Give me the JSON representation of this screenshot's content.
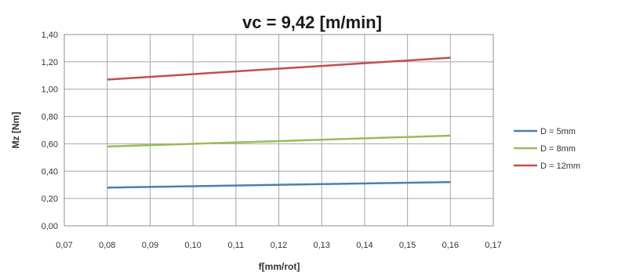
{
  "chart_data": {
    "type": "line",
    "title": "vc = 9,42 [m/min]",
    "xlabel": "f[mm/rot]",
    "ylabel": "Mz [Nm]",
    "xlim": [
      0.07,
      0.17
    ],
    "ylim": [
      0.0,
      1.4
    ],
    "x_ticks": [
      "0,07",
      "0,08",
      "0,09",
      "0,10",
      "0,11",
      "0,12",
      "0,13",
      "0,14",
      "0,15",
      "0,16",
      "0,17"
    ],
    "y_ticks": [
      "0,00",
      "0,20",
      "0,40",
      "0,60",
      "0,80",
      "1,00",
      "1,20",
      "1,40"
    ],
    "grid": true,
    "legend_position": "right",
    "series": [
      {
        "name": "D = 5mm",
        "color": "#4a7ebb",
        "x": [
          0.08,
          0.16
        ],
        "y": [
          0.28,
          0.32
        ]
      },
      {
        "name": "D = 8mm",
        "color": "#9bbb59",
        "x": [
          0.08,
          0.16
        ],
        "y": [
          0.58,
          0.66
        ]
      },
      {
        "name": "D = 12mm",
        "color": "#c0504d",
        "x": [
          0.08,
          0.16
        ],
        "y": [
          1.07,
          1.23
        ]
      }
    ]
  }
}
